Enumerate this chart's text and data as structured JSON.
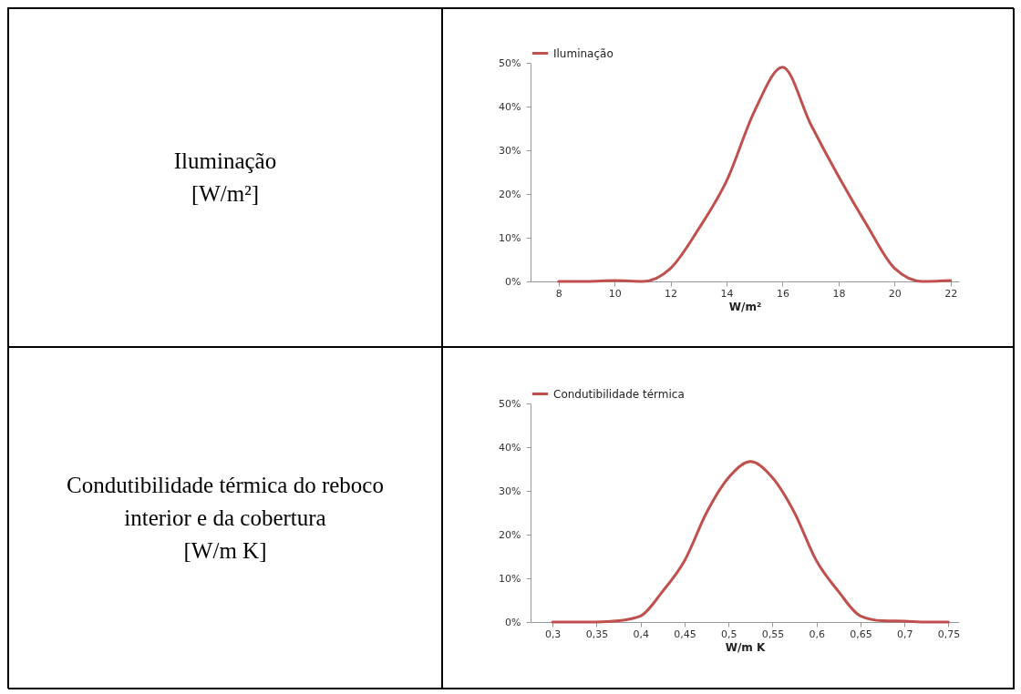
{
  "chart_data": [
    {
      "type": "other",
      "annotations": [
        "Iluminação",
        "[W/m²]"
      ]
    },
    {
      "type": "line",
      "xlabel": "W/m²",
      "x": [
        8,
        9,
        10,
        11,
        12,
        13,
        14,
        15,
        16,
        17,
        18,
        19,
        20,
        21,
        22
      ],
      "series": [
        {
          "name": "Iluminação",
          "color": "#c0504d",
          "values": [
            0,
            0,
            0.2,
            0,
            3,
            12,
            23,
            39,
            49,
            36,
            24,
            13,
            3,
            0,
            0.2
          ]
        }
      ],
      "xlim": [
        7,
        22.3
      ],
      "xticks": [
        8,
        10,
        12,
        14,
        16,
        18,
        20,
        22
      ],
      "ylim": [
        0,
        50
      ],
      "yticks": [
        {
          "value": 0,
          "label": "0%"
        },
        {
          "value": 10,
          "label": "10%"
        },
        {
          "value": 20,
          "label": "20%"
        },
        {
          "value": 30,
          "label": "30%"
        },
        {
          "value": 40,
          "label": "40%"
        },
        {
          "value": 50,
          "label": "50%"
        }
      ],
      "grid": false,
      "legend": "top",
      "marker": "none",
      "line_style": "solid"
    },
    {
      "type": "other",
      "annotations": [
        "Condutibilidade térmica do reboco",
        "interior e da cobertura",
        "[W/m K]"
      ]
    },
    {
      "type": "line",
      "xlabel": "W/m K",
      "x": [
        0.3,
        0.325,
        0.35,
        0.375,
        0.4,
        0.425,
        0.45,
        0.475,
        0.5,
        0.525,
        0.55,
        0.575,
        0.6,
        0.625,
        0.65,
        0.675,
        0.7,
        0.725,
        0.75
      ],
      "series": [
        {
          "name": "Condutibilidade térmica",
          "color": "#c0504d",
          "values": [
            0,
            0,
            0,
            0.3,
            1.4,
            7,
            14,
            25,
            33,
            36.7,
            33,
            25,
            14,
            7,
            1.4,
            0.3,
            0.2,
            0,
            0
          ]
        }
      ],
      "xlim": [
        0.275,
        0.762
      ],
      "xticks": [
        {
          "value": 0.3,
          "label": "0,3"
        },
        {
          "value": 0.35,
          "label": "0,35"
        },
        {
          "value": 0.4,
          "label": "0,4"
        },
        {
          "value": 0.45,
          "label": "0,45"
        },
        {
          "value": 0.5,
          "label": "0,5"
        },
        {
          "value": 0.55,
          "label": "0,55"
        },
        {
          "value": 0.6,
          "label": "0,6"
        },
        {
          "value": 0.65,
          "label": "0,65"
        },
        {
          "value": 0.7,
          "label": "0,7"
        },
        {
          "value": 0.75,
          "label": "0,75"
        }
      ],
      "ylim": [
        0,
        50
      ],
      "yticks": [
        {
          "value": 0,
          "label": "0%"
        },
        {
          "value": 10,
          "label": "10%"
        },
        {
          "value": 20,
          "label": "20%"
        },
        {
          "value": 30,
          "label": "30%"
        },
        {
          "value": 40,
          "label": "40%"
        },
        {
          "value": 50,
          "label": "50%"
        }
      ],
      "grid": false,
      "legend": "top",
      "marker": "none",
      "line_style": "solid"
    }
  ]
}
